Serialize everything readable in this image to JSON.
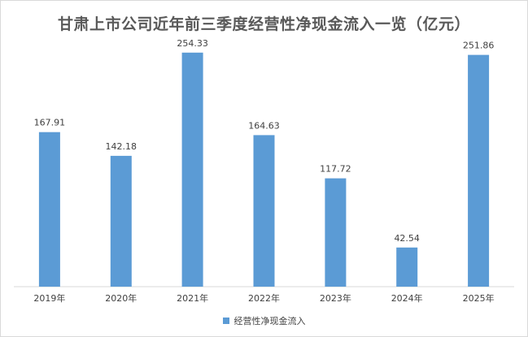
{
  "chart_data": {
    "type": "bar",
    "title": "甘肃上市公司近年前三季度经营性净现金流入一览（亿元）",
    "categories": [
      "2019年",
      "2020年",
      "2021年",
      "2022年",
      "2023年",
      "2024年",
      "2025年"
    ],
    "series": [
      {
        "name": "经营性净现金流入",
        "values": [
          167.91,
          142.18,
          254.33,
          164.63,
          117.72,
          42.54,
          251.86
        ],
        "color": "#5b9bd5"
      }
    ],
    "value_labels": [
      "167.91",
      "142.18",
      "254.33",
      "164.63",
      "117.72",
      "42.54",
      "251.86"
    ],
    "ylim": [
      0,
      300
    ],
    "grid": false,
    "y_axis_visible": false,
    "legend_position": "bottom"
  }
}
